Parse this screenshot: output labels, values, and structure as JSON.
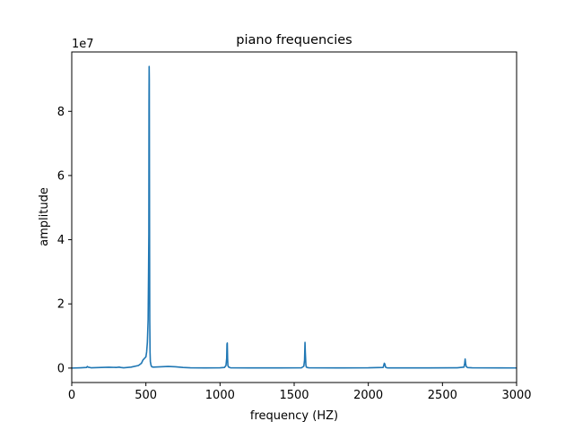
{
  "chart_data": {
    "type": "line",
    "title": "piano frequencies",
    "xlabel": "frequency (HZ)",
    "ylabel": "amplitude",
    "y_offset_label": "1e7",
    "xlim": [
      0,
      3000
    ],
    "ylim": [
      -4500000,
      98500000
    ],
    "x_ticks": [
      0,
      500,
      1000,
      1500,
      2000,
      2500,
      3000
    ],
    "x_tick_labels": [
      "0",
      "500",
      "1000",
      "1500",
      "2000",
      "2500",
      "3000"
    ],
    "y_ticks": [
      0,
      20000000,
      40000000,
      60000000,
      80000000
    ],
    "y_tick_labels": [
      "0",
      "2",
      "4",
      "6",
      "8"
    ],
    "grid": false,
    "line_color": "#1f77b4",
    "series": [
      {
        "x": [
          0,
          60,
          100,
          105,
          110,
          130,
          200,
          250,
          300,
          320,
          330,
          350,
          400,
          450,
          470,
          480,
          490,
          500,
          505,
          510,
          515,
          518,
          520,
          521,
          522,
          523,
          524,
          525,
          526,
          528,
          530,
          535,
          540,
          550,
          600,
          650,
          700,
          750,
          800,
          900,
          1000,
          1030,
          1040,
          1045,
          1047,
          1049,
          1051,
          1053,
          1058,
          1070,
          1200,
          1400,
          1550,
          1565,
          1570,
          1573,
          1575,
          1577,
          1579,
          1582,
          1590,
          1600,
          1800,
          2000,
          2100,
          2108,
          2112,
          2116,
          2125,
          2140,
          2400,
          2600,
          2645,
          2650,
          2653,
          2656,
          2660,
          2670,
          2700,
          2900,
          3000
        ],
        "y": [
          0,
          100000,
          200000,
          500000,
          300000,
          100000,
          200000,
          250000,
          200000,
          300000,
          200000,
          100000,
          300000,
          800000,
          1500000,
          2500000,
          3000000,
          3500000,
          5000000,
          8000000,
          15000000,
          30000000,
          42000000,
          82000000,
          94000000,
          90000000,
          60000000,
          35000000,
          15000000,
          5000000,
          2000000,
          800000,
          400000,
          300000,
          400000,
          500000,
          400000,
          200000,
          100000,
          50000,
          100000,
          200000,
          800000,
          3000000,
          7500000,
          7800000,
          3000000,
          800000,
          300000,
          100000,
          50000,
          50000,
          100000,
          600000,
          2500000,
          8000000,
          5000000,
          3000000,
          1000000,
          300000,
          150000,
          100000,
          50000,
          80000,
          200000,
          1500000,
          1200000,
          300000,
          100000,
          50000,
          50000,
          80000,
          300000,
          1500000,
          2800000,
          1500000,
          500000,
          150000,
          80000,
          50000,
          40000
        ]
      }
    ]
  }
}
